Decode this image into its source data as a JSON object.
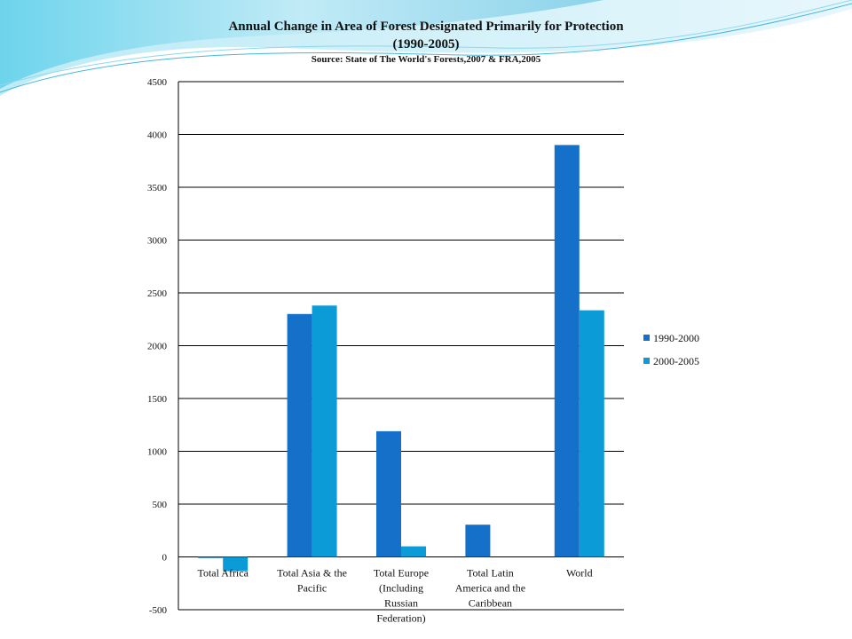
{
  "chart_data": {
    "type": "bar",
    "title": "Annual Change in Area of Forest Designated Primarily for Protection",
    "subtitle": "(1990-2005)",
    "source": "Source: State of The World's Forests,2007 & FRA,2005",
    "categories": [
      [
        "Total Africa"
      ],
      [
        "Total Asia & the",
        "Pacific"
      ],
      [
        "Total Europe",
        "(Including",
        "Russian",
        "Federation)"
      ],
      [
        "Total Latin",
        "America and the",
        "Caribbean"
      ],
      [
        "World"
      ]
    ],
    "series": [
      {
        "name": "1990-2000",
        "color": "#1470c8",
        "values": [
          -5,
          2300,
          1190,
          305,
          3900
        ]
      },
      {
        "name": "2000-2005",
        "color": "#0b9bd6",
        "values": [
          -135,
          2380,
          100,
          0,
          2335
        ]
      }
    ],
    "ylim": [
      -500,
      4500
    ],
    "yticks": [
      4500,
      4000,
      3500,
      3000,
      2500,
      2000,
      1500,
      1000,
      500,
      0,
      -500
    ],
    "xlabel": "",
    "ylabel": "",
    "grid": true,
    "legend": "right"
  }
}
